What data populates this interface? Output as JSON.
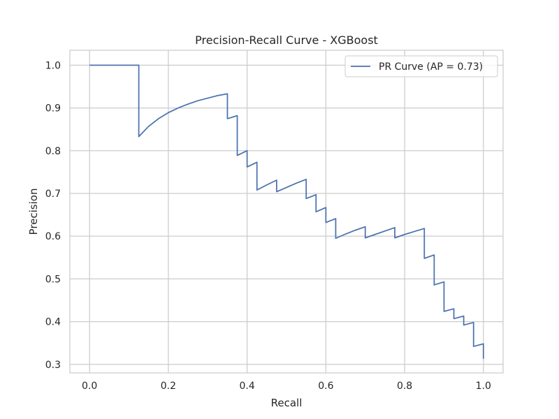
{
  "chart_data": {
    "type": "line",
    "title": "Precision-Recall Curve - XGBoost",
    "xlabel": "Recall",
    "ylabel": "Precision",
    "xlim": [
      -0.05,
      1.05
    ],
    "ylim": [
      0.28,
      1.035
    ],
    "grid": true,
    "legend": {
      "placement": "top-right"
    },
    "x_ticks": [
      0.0,
      0.2,
      0.4,
      0.6,
      0.8,
      1.0
    ],
    "x_tick_labels": [
      "0.0",
      "0.2",
      "0.4",
      "0.6",
      "0.8",
      "1.0"
    ],
    "y_ticks": [
      0.3,
      0.4,
      0.5,
      0.6,
      0.7,
      0.8,
      0.9,
      1.0
    ],
    "y_tick_labels": [
      "0.3",
      "0.4",
      "0.5",
      "0.6",
      "0.7",
      "0.8",
      "0.9",
      "1.0"
    ],
    "series": [
      {
        "name": "PR Curve (AP = 0.73)",
        "color": "#4c72b0",
        "x": [
          0.0,
          0.125,
          0.125,
          0.15,
          0.175,
          0.2,
          0.225,
          0.25,
          0.275,
          0.3,
          0.325,
          0.35,
          0.35,
          0.375,
          0.375,
          0.4,
          0.4,
          0.425,
          0.425,
          0.45,
          0.475,
          0.475,
          0.5,
          0.525,
          0.55,
          0.55,
          0.575,
          0.575,
          0.6,
          0.6,
          0.625,
          0.625,
          0.65,
          0.675,
          0.7,
          0.7,
          0.725,
          0.75,
          0.775,
          0.775,
          0.8,
          0.825,
          0.85,
          0.85,
          0.875,
          0.875,
          0.9,
          0.9,
          0.925,
          0.925,
          0.95,
          0.95,
          0.975,
          0.975,
          1.0,
          1.0
        ],
        "y": [
          1.0,
          1.0,
          0.833,
          0.857,
          0.875,
          0.889,
          0.9,
          0.909,
          0.917,
          0.923,
          0.929,
          0.933,
          0.875,
          0.882,
          0.789,
          0.8,
          0.762,
          0.773,
          0.708,
          0.72,
          0.731,
          0.704,
          0.714,
          0.724,
          0.733,
          0.688,
          0.697,
          0.657,
          0.667,
          0.632,
          0.641,
          0.595,
          0.605,
          0.614,
          0.622,
          0.596,
          0.604,
          0.612,
          0.62,
          0.596,
          0.604,
          0.611,
          0.618,
          0.548,
          0.556,
          0.486,
          0.493,
          0.424,
          0.43,
          0.407,
          0.413,
          0.392,
          0.398,
          0.342,
          0.348,
          0.313
        ]
      }
    ]
  }
}
